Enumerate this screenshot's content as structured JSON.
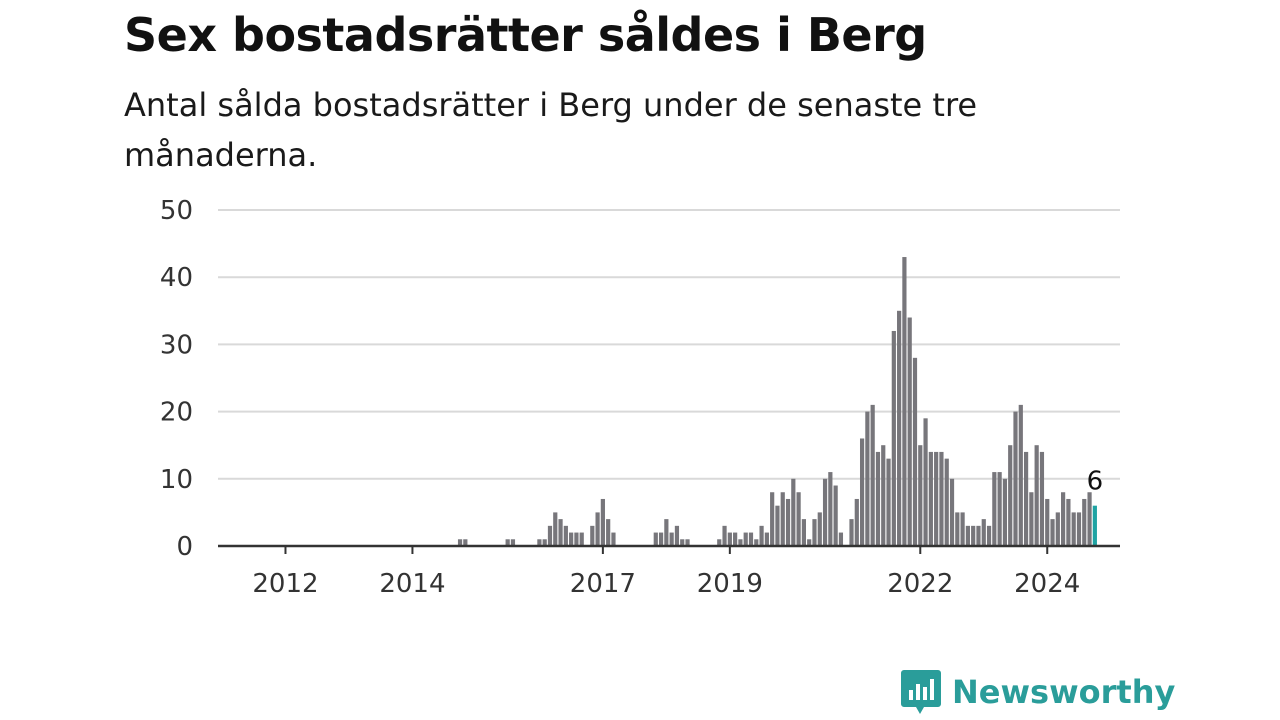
{
  "title": "Sex bostadsrätter såldes i Berg",
  "subtitle": "Antal sålda bostadsrätter i Berg under de senaste tre månaderna.",
  "brand": {
    "name": "Newsworthy",
    "color": "#2a9d9a"
  },
  "colors": {
    "bar": "#77767b",
    "highlight": "#1fa3a3",
    "grid": "#d9d9d9",
    "axis": "#333333"
  },
  "chart_data": {
    "type": "bar",
    "x_unit": "month",
    "x_start": "2011-01",
    "x_ticks": [
      {
        "label": "2012",
        "date": "2012-01"
      },
      {
        "label": "2014",
        "date": "2014-01"
      },
      {
        "label": "2017",
        "date": "2017-01"
      },
      {
        "label": "2019",
        "date": "2019-01"
      },
      {
        "label": "2022",
        "date": "2022-01"
      },
      {
        "label": "2024",
        "date": "2024-01"
      }
    ],
    "yticks": [
      0,
      10,
      20,
      30,
      40,
      50
    ],
    "ylim": [
      0,
      50
    ],
    "grid": true,
    "bars": [
      {
        "date": "2014-10",
        "value": 1
      },
      {
        "date": "2014-11",
        "value": 1
      },
      {
        "date": "2015-07",
        "value": 1
      },
      {
        "date": "2015-08",
        "value": 1
      },
      {
        "date": "2016-01",
        "value": 1
      },
      {
        "date": "2016-02",
        "value": 1
      },
      {
        "date": "2016-03",
        "value": 3
      },
      {
        "date": "2016-04",
        "value": 5
      },
      {
        "date": "2016-05",
        "value": 4
      },
      {
        "date": "2016-06",
        "value": 3
      },
      {
        "date": "2016-07",
        "value": 2
      },
      {
        "date": "2016-08",
        "value": 2
      },
      {
        "date": "2016-09",
        "value": 2
      },
      {
        "date": "2016-11",
        "value": 3
      },
      {
        "date": "2016-12",
        "value": 5
      },
      {
        "date": "2017-01",
        "value": 7
      },
      {
        "date": "2017-02",
        "value": 4
      },
      {
        "date": "2017-03",
        "value": 2
      },
      {
        "date": "2017-11",
        "value": 2
      },
      {
        "date": "2017-12",
        "value": 2
      },
      {
        "date": "2018-01",
        "value": 4
      },
      {
        "date": "2018-02",
        "value": 2
      },
      {
        "date": "2018-03",
        "value": 3
      },
      {
        "date": "2018-04",
        "value": 1
      },
      {
        "date": "2018-05",
        "value": 1
      },
      {
        "date": "2018-11",
        "value": 1
      },
      {
        "date": "2018-12",
        "value": 3
      },
      {
        "date": "2019-01",
        "value": 2
      },
      {
        "date": "2019-02",
        "value": 2
      },
      {
        "date": "2019-03",
        "value": 1
      },
      {
        "date": "2019-04",
        "value": 2
      },
      {
        "date": "2019-05",
        "value": 2
      },
      {
        "date": "2019-06",
        "value": 1
      },
      {
        "date": "2019-07",
        "value": 3
      },
      {
        "date": "2019-08",
        "value": 2
      },
      {
        "date": "2019-09",
        "value": 8
      },
      {
        "date": "2019-10",
        "value": 6
      },
      {
        "date": "2019-11",
        "value": 8
      },
      {
        "date": "2019-12",
        "value": 7
      },
      {
        "date": "2020-01",
        "value": 10
      },
      {
        "date": "2020-02",
        "value": 8
      },
      {
        "date": "2020-03",
        "value": 4
      },
      {
        "date": "2020-04",
        "value": 1
      },
      {
        "date": "2020-05",
        "value": 4
      },
      {
        "date": "2020-06",
        "value": 5
      },
      {
        "date": "2020-07",
        "value": 10
      },
      {
        "date": "2020-08",
        "value": 11
      },
      {
        "date": "2020-09",
        "value": 9
      },
      {
        "date": "2020-10",
        "value": 2
      },
      {
        "date": "2020-12",
        "value": 4
      },
      {
        "date": "2021-01",
        "value": 7
      },
      {
        "date": "2021-02",
        "value": 16
      },
      {
        "date": "2021-03",
        "value": 20
      },
      {
        "date": "2021-04",
        "value": 21
      },
      {
        "date": "2021-05",
        "value": 14
      },
      {
        "date": "2021-06",
        "value": 15
      },
      {
        "date": "2021-07",
        "value": 13
      },
      {
        "date": "2021-08",
        "value": 32
      },
      {
        "date": "2021-09",
        "value": 35
      },
      {
        "date": "2021-10",
        "value": 43
      },
      {
        "date": "2021-11",
        "value": 34
      },
      {
        "date": "2021-12",
        "value": 28
      },
      {
        "date": "2022-01",
        "value": 15
      },
      {
        "date": "2022-02",
        "value": 19
      },
      {
        "date": "2022-03",
        "value": 14
      },
      {
        "date": "2022-04",
        "value": 14
      },
      {
        "date": "2022-05",
        "value": 14
      },
      {
        "date": "2022-06",
        "value": 13
      },
      {
        "date": "2022-07",
        "value": 10
      },
      {
        "date": "2022-08",
        "value": 5
      },
      {
        "date": "2022-09",
        "value": 5
      },
      {
        "date": "2022-10",
        "value": 3
      },
      {
        "date": "2022-11",
        "value": 3
      },
      {
        "date": "2022-12",
        "value": 3
      },
      {
        "date": "2023-01",
        "value": 4
      },
      {
        "date": "2023-02",
        "value": 3
      },
      {
        "date": "2023-03",
        "value": 11
      },
      {
        "date": "2023-04",
        "value": 11
      },
      {
        "date": "2023-05",
        "value": 10
      },
      {
        "date": "2023-06",
        "value": 15
      },
      {
        "date": "2023-07",
        "value": 20
      },
      {
        "date": "2023-08",
        "value": 21
      },
      {
        "date": "2023-09",
        "value": 14
      },
      {
        "date": "2023-10",
        "value": 8
      },
      {
        "date": "2023-11",
        "value": 15
      },
      {
        "date": "2023-12",
        "value": 14
      },
      {
        "date": "2024-01",
        "value": 7
      },
      {
        "date": "2024-02",
        "value": 4
      },
      {
        "date": "2024-03",
        "value": 5
      },
      {
        "date": "2024-04",
        "value": 8
      },
      {
        "date": "2024-05",
        "value": 7
      },
      {
        "date": "2024-06",
        "value": 5
      },
      {
        "date": "2024-07",
        "value": 5
      },
      {
        "date": "2024-08",
        "value": 7
      },
      {
        "date": "2024-09",
        "value": 8
      },
      {
        "date": "2024-10",
        "value": 6,
        "highlight": true
      }
    ],
    "annotation": {
      "date": "2024-10",
      "text": "6"
    }
  }
}
